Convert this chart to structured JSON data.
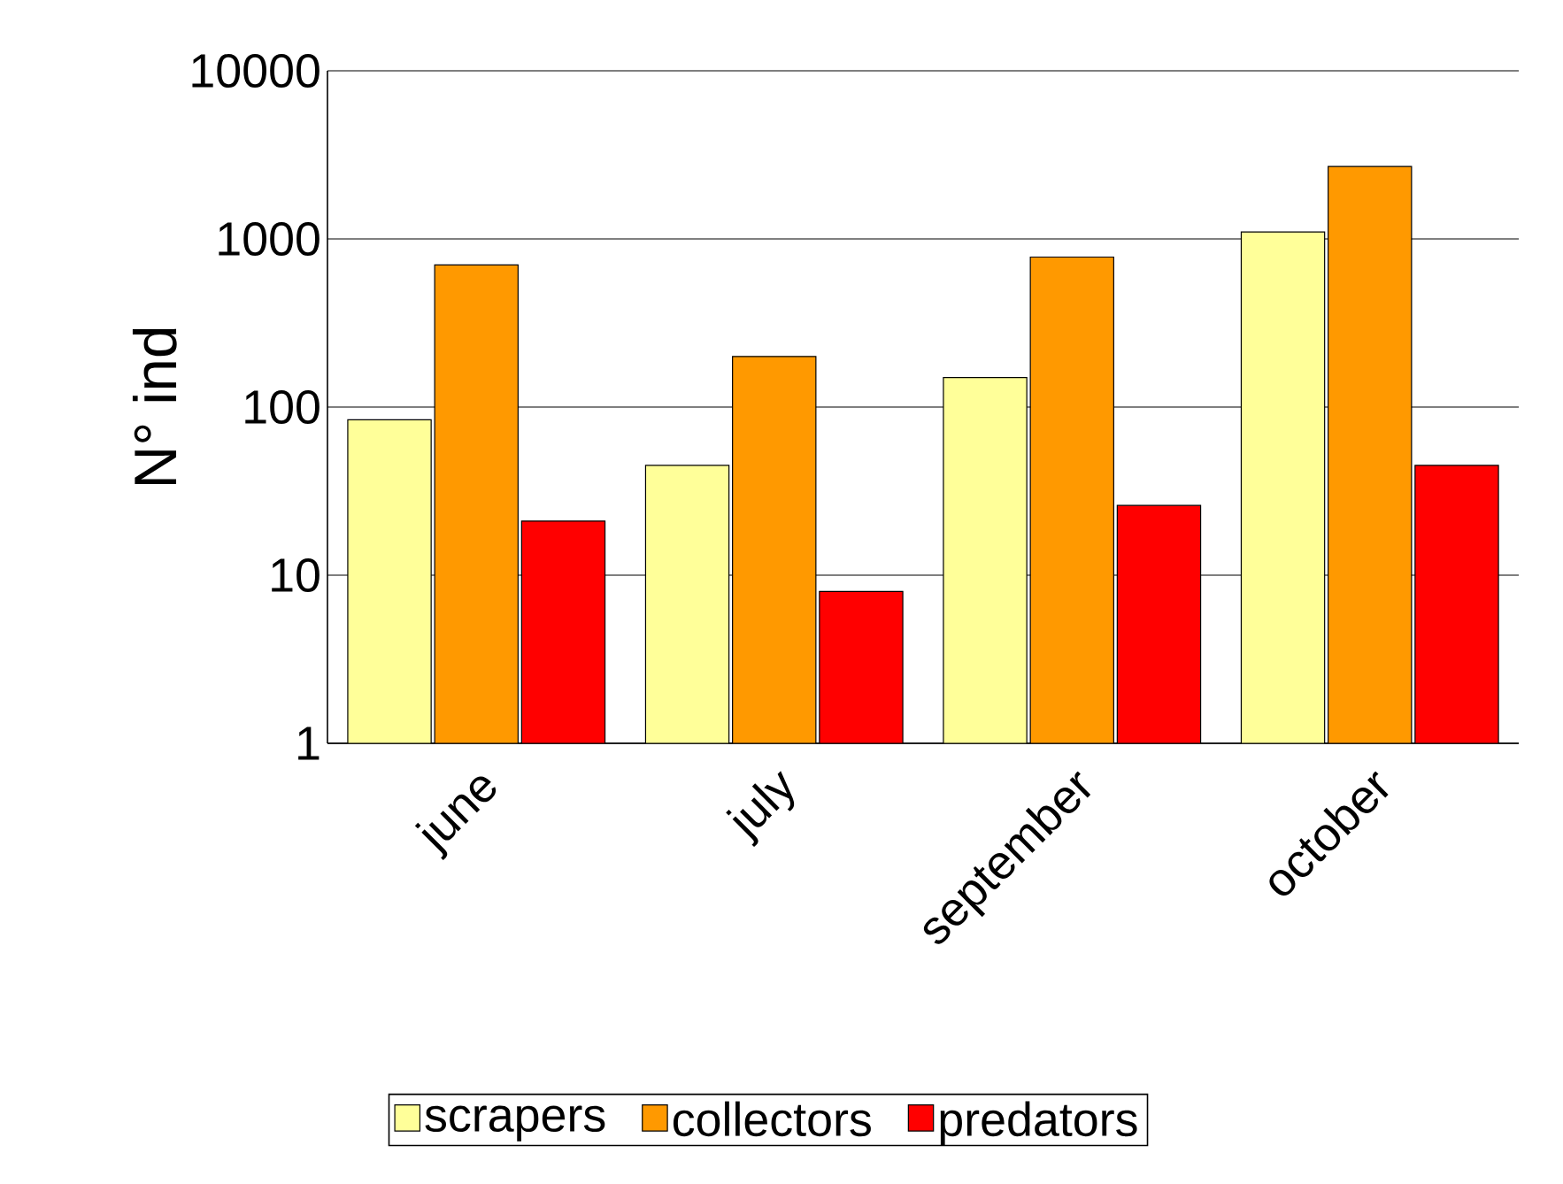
{
  "chart_data": {
    "type": "bar",
    "ylabel": "N° ind",
    "categories": [
      "june",
      "july",
      "september",
      "october"
    ],
    "series": [
      {
        "name": "scrapers",
        "color": "#ffff99",
        "values": [
          84,
          45,
          150,
          1100
        ]
      },
      {
        "name": "collectors",
        "color": "#ff9900",
        "values": [
          700,
          200,
          780,
          2700
        ]
      },
      {
        "name": "predators",
        "color": "#ff0000",
        "values": [
          21,
          8,
          26,
          45
        ]
      }
    ],
    "log": "y",
    "ylim": [
      1,
      10000
    ],
    "yticks": [
      1,
      10,
      100,
      1000,
      10000
    ],
    "grid": "y",
    "legend": "bottom"
  }
}
